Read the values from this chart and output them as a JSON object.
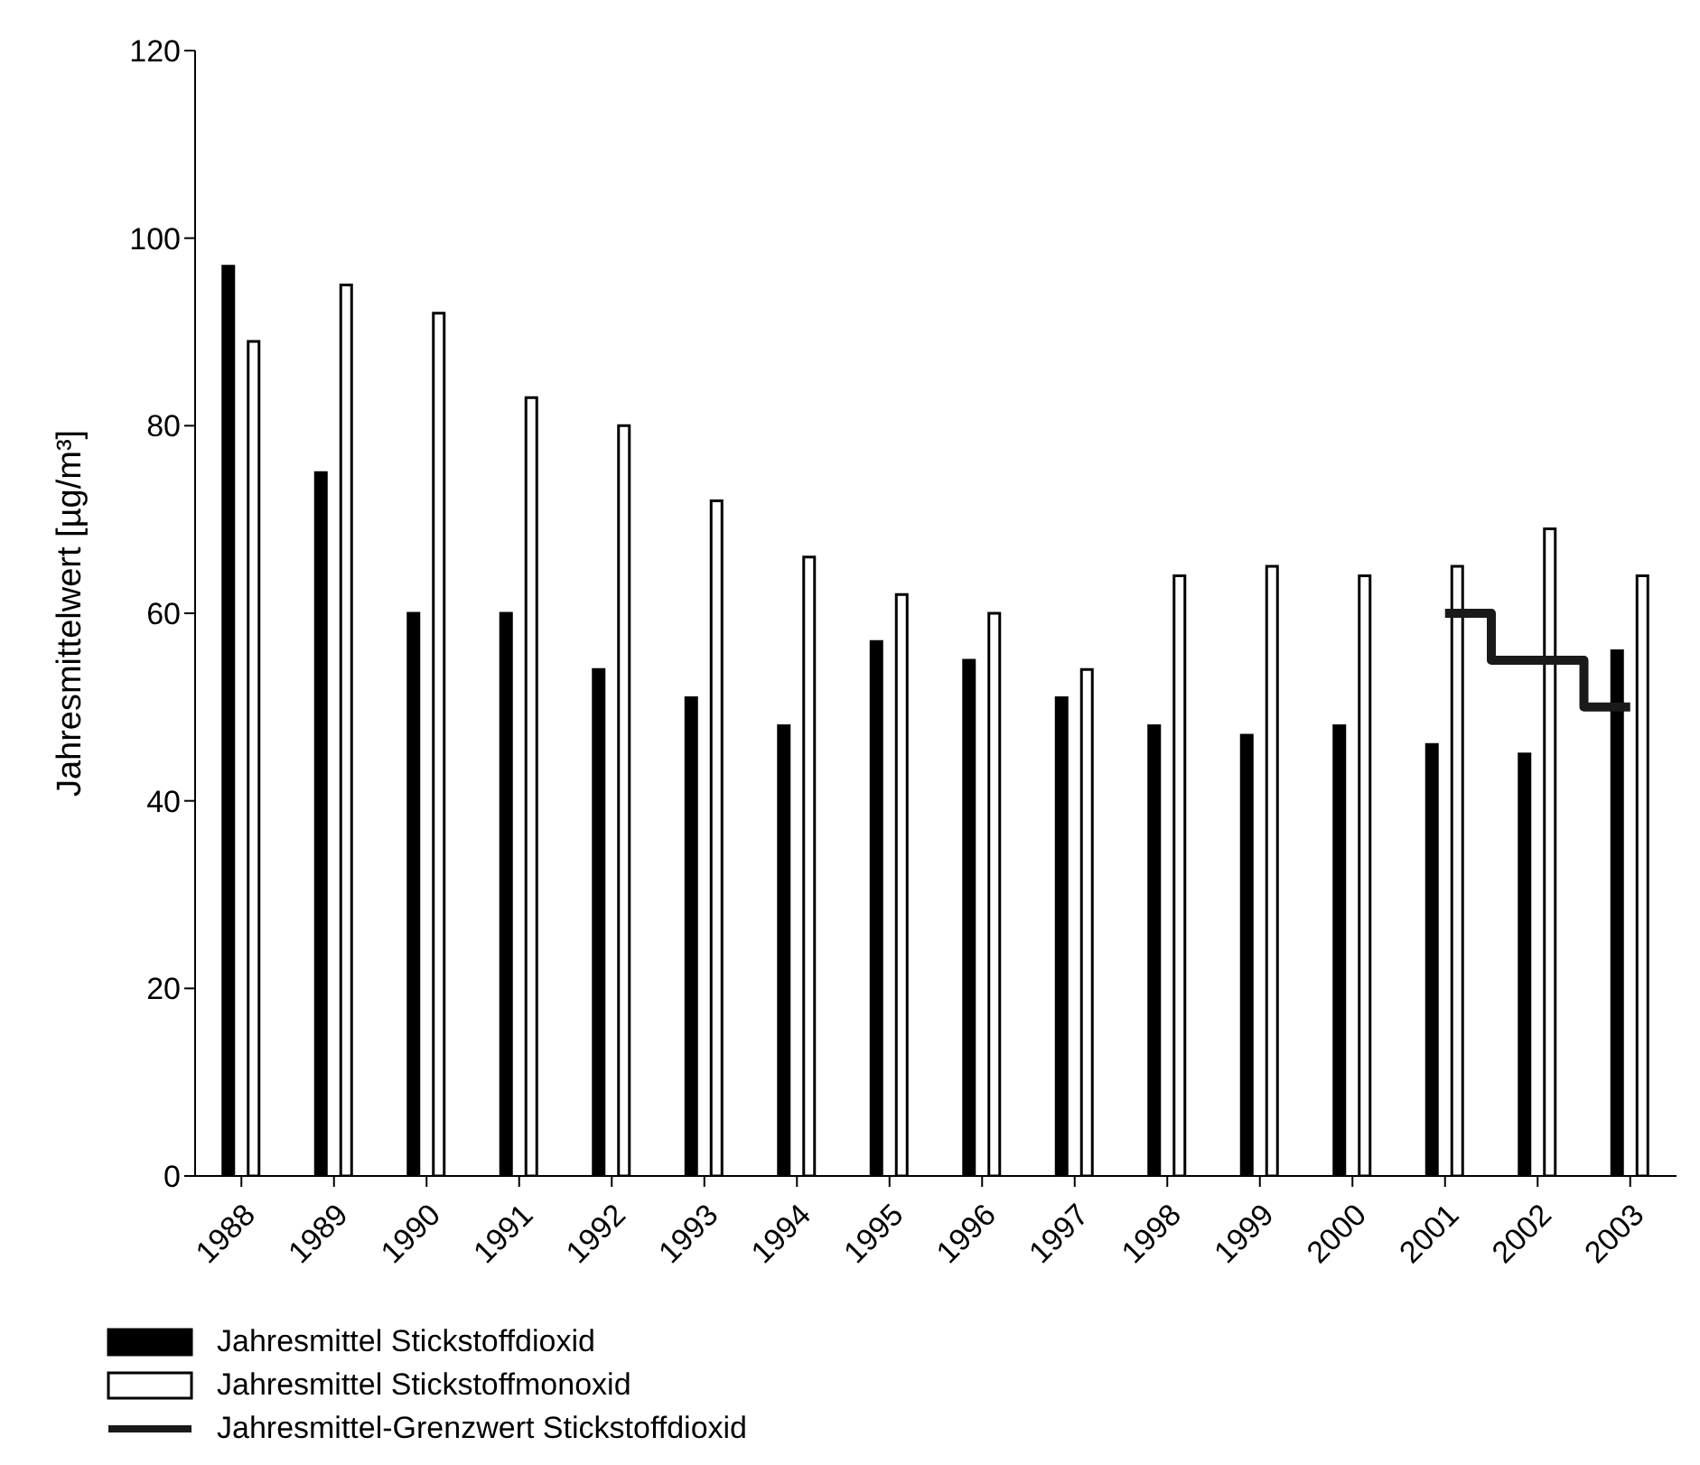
{
  "chart_data": {
    "type": "bar",
    "ylabel": "Jahresmittelwert [µg/m³]",
    "categories": [
      "1988",
      "1989",
      "1990",
      "1991",
      "1992",
      "1993",
      "1994",
      "1995",
      "1996",
      "1997",
      "1998",
      "1999",
      "2000",
      "2001",
      "2002",
      "2003"
    ],
    "series": [
      {
        "name": "Jahresmittel Stickstoffdioxid",
        "color": "#000000",
        "values": [
          97,
          75,
          60,
          60,
          54,
          51,
          48,
          57,
          55,
          51,
          48,
          47,
          48,
          46,
          45,
          56
        ]
      },
      {
        "name": "Jahresmittel Stickstoffmonoxid",
        "color": "#ffffff",
        "values": [
          89,
          95,
          92,
          83,
          80,
          72,
          66,
          62,
          60,
          54,
          64,
          65,
          64,
          65,
          69,
          64
        ]
      },
      {
        "name": "Jahresmittel-Grenzwert Stickstoffdioxid",
        "type": "step",
        "color": "#1a1a1a",
        "values": [
          null,
          null,
          null,
          null,
          null,
          null,
          null,
          null,
          null,
          null,
          null,
          null,
          null,
          60,
          55,
          50
        ]
      }
    ],
    "ylim": [
      0,
      120
    ],
    "yticks": [
      0,
      20,
      40,
      60,
      80,
      100,
      120
    ],
    "grid": false,
    "legend": "bottom left"
  }
}
